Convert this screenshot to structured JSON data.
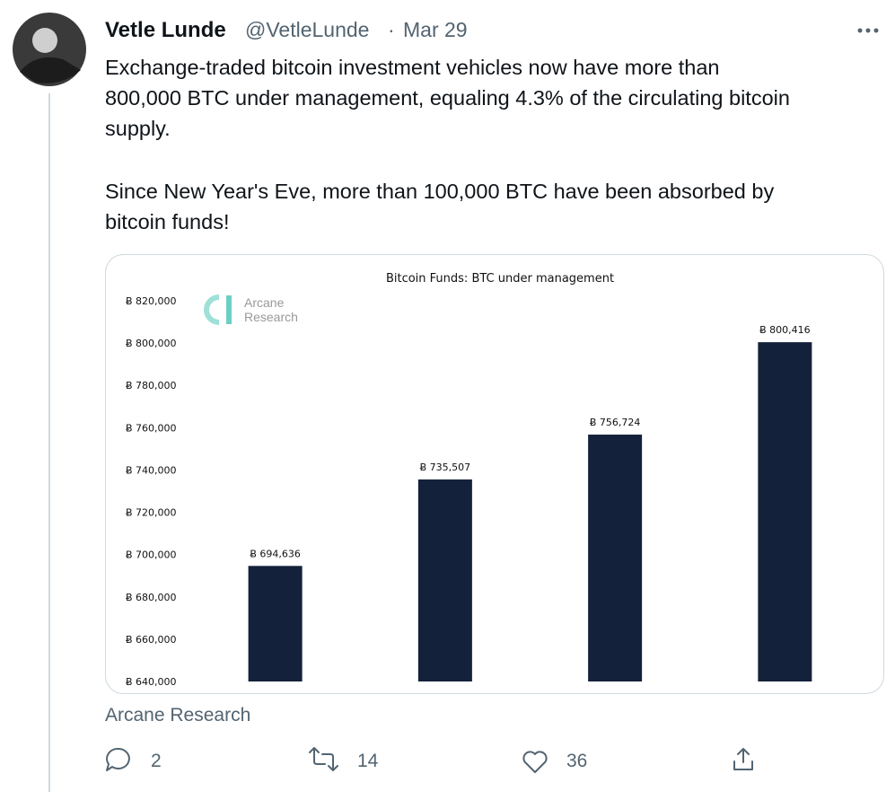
{
  "tweet": {
    "author": "Vetle Lunde",
    "handle": "@VetleLunde",
    "separator": "·",
    "date": "Mar 29",
    "text_lines": [
      "Exchange-traded bitcoin investment vehicles now have more than",
      "800,000 BTC under management, equaling 4.3% of the circulating bitcoin",
      "supply.",
      "Since New Year's Eve, more than 100,000 BTC have been absorbed by",
      "bitcoin funds!"
    ],
    "card_source": "Arcane Research",
    "replies": "2",
    "retweets": "14",
    "likes": "36"
  },
  "chart_data": {
    "type": "bar",
    "title": "Bitcoin Funds: BTC under management",
    "watermark": [
      "Arcane",
      "Research"
    ],
    "categories": [
      null,
      null,
      null,
      null
    ],
    "values": [
      694636,
      735507,
      756724,
      800416
    ],
    "value_labels": [
      "Ƀ 694,636",
      "Ƀ 735,507",
      "Ƀ 756,724",
      "Ƀ 800,416"
    ],
    "color": "#14213a",
    "ylim": [
      640000,
      820000
    ],
    "yticks": [
      {
        "value": 640000,
        "label": "Ƀ 640,000"
      },
      {
        "value": 660000,
        "label": "Ƀ 660,000"
      },
      {
        "value": 680000,
        "label": "Ƀ 680,000"
      },
      {
        "value": 700000,
        "label": "Ƀ 700,000"
      },
      {
        "value": 720000,
        "label": "Ƀ 720,000"
      },
      {
        "value": 740000,
        "label": "Ƀ 740,000"
      },
      {
        "value": 760000,
        "label": "Ƀ 760,000"
      },
      {
        "value": 780000,
        "label": "Ƀ 780,000"
      },
      {
        "value": 800000,
        "label": "Ƀ 800,000"
      },
      {
        "value": 820000,
        "label": "Ƀ 820,000"
      }
    ],
    "grid": false
  }
}
